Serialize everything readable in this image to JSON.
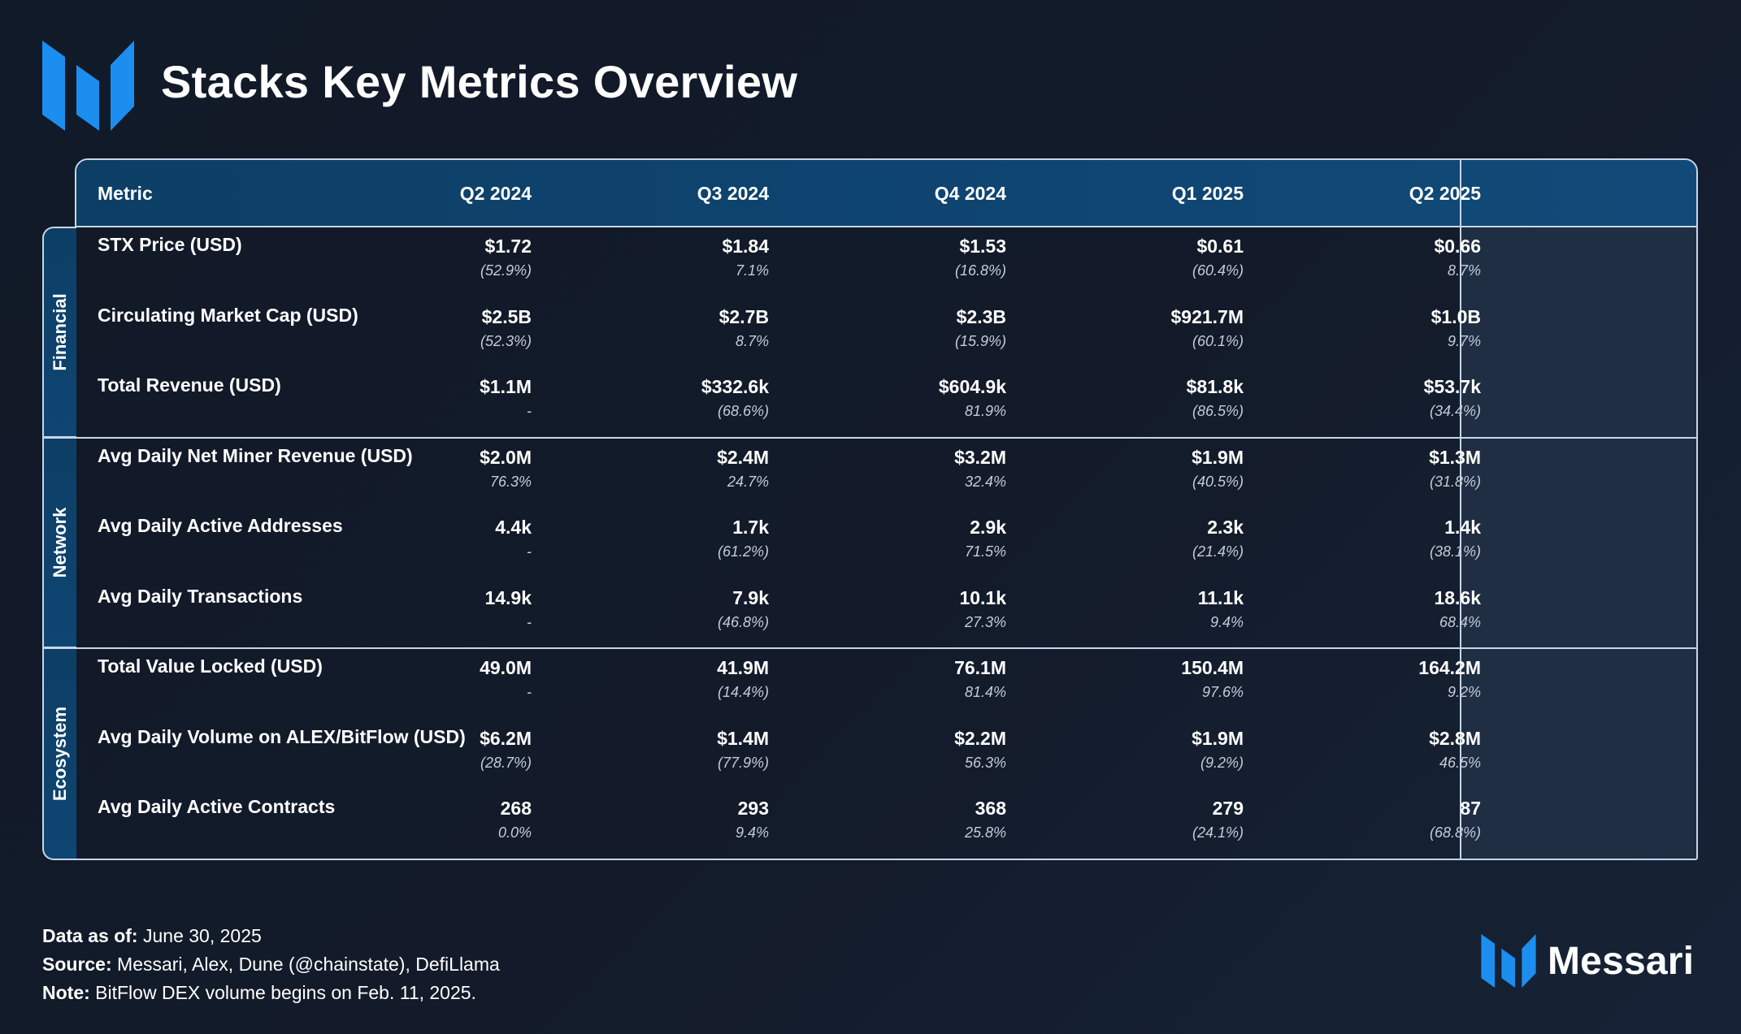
{
  "header": {
    "title": "Stacks Key Metrics Overview",
    "logo_icon": "messari-logo-icon"
  },
  "colors": {
    "accent_blue": "#1c8ef0",
    "header_bg": "#0f4572",
    "highlight_col_bg": "#202e43",
    "border": "#c6d6ea"
  },
  "chart_data": {
    "type": "table",
    "title": "Stacks Key Metrics Overview",
    "columns": [
      "Metric",
      "Q2 2024",
      "Q3 2024",
      "Q4 2024",
      "Q1 2025",
      "Q2 2025"
    ],
    "highlighted_column": "Q2 2025",
    "groups": [
      {
        "name": "Financial",
        "rows": [
          {
            "metric": "STX Price (USD)",
            "values": [
              "$1.72",
              "$1.84",
              "$1.53",
              "$0.61",
              "$0.66"
            ],
            "changes": [
              "(52.9%)",
              "7.1%",
              "(16.8%)",
              "(60.4%)",
              "8.7%"
            ]
          },
          {
            "metric": "Circulating Market Cap (USD)",
            "values": [
              "$2.5B",
              "$2.7B",
              "$2.3B",
              "$921.7M",
              "$1.0B"
            ],
            "changes": [
              "(52.3%)",
              "8.7%",
              "(15.9%)",
              "(60.1%)",
              "9.7%"
            ]
          },
          {
            "metric": "Total Revenue (USD)",
            "values": [
              "$1.1M",
              "$332.6k",
              "$604.9k",
              "$81.8k",
              "$53.7k"
            ],
            "changes": [
              "-",
              "(68.6%)",
              "81.9%",
              "(86.5%)",
              "(34.4%)"
            ]
          }
        ]
      },
      {
        "name": "Network",
        "rows": [
          {
            "metric": "Avg Daily Net Miner Revenue (USD)",
            "values": [
              "$2.0M",
              "$2.4M",
              "$3.2M",
              "$1.9M",
              "$1.3M"
            ],
            "changes": [
              "76.3%",
              "24.7%",
              "32.4%",
              "(40.5%)",
              "(31.8%)"
            ]
          },
          {
            "metric": "Avg Daily Active Addresses",
            "values": [
              "4.4k",
              "1.7k",
              "2.9k",
              "2.3k",
              "1.4k"
            ],
            "changes": [
              "-",
              "(61.2%)",
              "71.5%",
              "(21.4%)",
              "(38.1%)"
            ]
          },
          {
            "metric": "Avg Daily Transactions",
            "values": [
              "14.9k",
              "7.9k",
              "10.1k",
              "11.1k",
              "18.6k"
            ],
            "changes": [
              "-",
              "(46.8%)",
              "27.3%",
              "9.4%",
              "68.4%"
            ]
          }
        ]
      },
      {
        "name": "Ecosystem",
        "rows": [
          {
            "metric": "Total Value Locked (USD)",
            "values": [
              "49.0M",
              "41.9M",
              "76.1M",
              "150.4M",
              "164.2M"
            ],
            "changes": [
              "-",
              "(14.4%)",
              "81.4%",
              "97.6%",
              "9.2%"
            ]
          },
          {
            "metric": "Avg Daily Volume on ALEX/BitFlow (USD)",
            "values": [
              "$6.2M",
              "$1.4M",
              "$2.2M",
              "$1.9M",
              "$2.8M"
            ],
            "changes": [
              "(28.7%)",
              "(77.9%)",
              "56.3%",
              "(9.2%)",
              "46.5%"
            ]
          },
          {
            "metric": "Avg Daily Active Contracts",
            "values": [
              "268",
              "293",
              "368",
              "279",
              "87"
            ],
            "changes": [
              "0.0%",
              "9.4%",
              "25.8%",
              "(24.1%)",
              "(68.8%)"
            ]
          }
        ]
      }
    ]
  },
  "footer": {
    "data_as_of_label": "Data as of:",
    "data_as_of": "June 30, 2025",
    "source_label": "Source:",
    "source": "Messari, Alex, Dune (@chainstate), DefiLlama",
    "note_label": "Note:",
    "note": "BitFlow DEX volume begins on Feb. 11, 2025."
  },
  "brand": {
    "name": "Messari",
    "icon": "messari-logo-icon"
  }
}
